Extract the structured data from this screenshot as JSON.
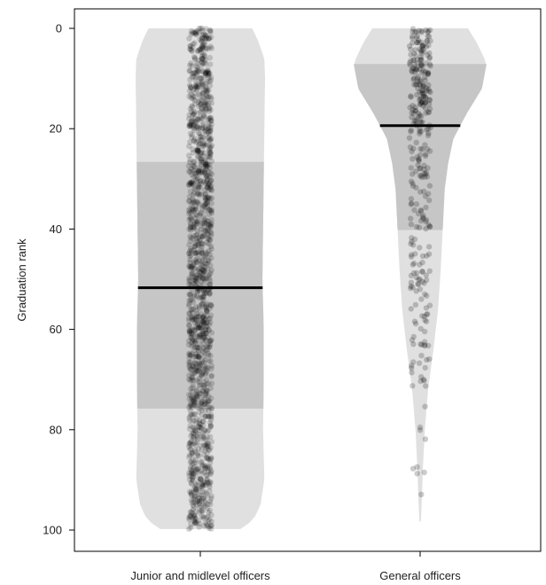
{
  "chart_data": {
    "type": "violin",
    "ylabel": "Graduation rank",
    "y_axis": {
      "min": 0,
      "max": 100,
      "reversed": true,
      "ticks": [
        0,
        20,
        40,
        60,
        80,
        100
      ]
    },
    "categories": [
      "Junior and midlevel officers",
      "General officers"
    ],
    "groups": [
      {
        "name": "Junior and midlevel officers",
        "median": 51.7,
        "q1": 26.6,
        "q3": 75.8,
        "min": 0,
        "max": 99.8,
        "point_count": 1400,
        "density_profile": [
          {
            "rank": 0,
            "relative_width": 0.8
          },
          {
            "rank": 2,
            "relative_width": 0.88
          },
          {
            "rank": 6,
            "relative_width": 0.99
          },
          {
            "rank": 10,
            "relative_width": 1.0
          },
          {
            "rank": 20,
            "relative_width": 0.99
          },
          {
            "rank": 30,
            "relative_width": 0.98
          },
          {
            "rank": 40,
            "relative_width": 0.97
          },
          {
            "rank": 50,
            "relative_width": 0.96
          },
          {
            "rank": 55,
            "relative_width": 0.97
          },
          {
            "rank": 60,
            "relative_width": 0.98
          },
          {
            "rank": 70,
            "relative_width": 0.98
          },
          {
            "rank": 80,
            "relative_width": 0.97
          },
          {
            "rank": 90,
            "relative_width": 0.99
          },
          {
            "rank": 95,
            "relative_width": 0.93
          },
          {
            "rank": 98,
            "relative_width": 0.82
          },
          {
            "rank": 99.8,
            "relative_width": 0.62
          }
        ]
      },
      {
        "name": "General officers",
        "median": 19.4,
        "q1": 7.1,
        "q3": 40.2,
        "min": 0,
        "max": 98.3,
        "point_count": 330,
        "density_profile": [
          {
            "rank": 0,
            "relative_width": 0.72
          },
          {
            "rank": 3,
            "relative_width": 0.86
          },
          {
            "rank": 7,
            "relative_width": 1.0
          },
          {
            "rank": 12,
            "relative_width": 0.93
          },
          {
            "rank": 17,
            "relative_width": 0.7
          },
          {
            "rank": 22,
            "relative_width": 0.5
          },
          {
            "rank": 27,
            "relative_width": 0.42
          },
          {
            "rank": 32,
            "relative_width": 0.37
          },
          {
            "rank": 40,
            "relative_width": 0.34
          },
          {
            "rank": 48,
            "relative_width": 0.31
          },
          {
            "rank": 56,
            "relative_width": 0.27
          },
          {
            "rank": 64,
            "relative_width": 0.2
          },
          {
            "rank": 72,
            "relative_width": 0.12
          },
          {
            "rank": 80,
            "relative_width": 0.07
          },
          {
            "rank": 88,
            "relative_width": 0.04
          },
          {
            "rank": 94,
            "relative_width": 0.025
          },
          {
            "rank": 98.3,
            "relative_width": 0.01
          }
        ]
      }
    ],
    "colors": {
      "violin_outer": "#e0e0e0",
      "violin_iqr": "#c6c6c6",
      "points": "#000000",
      "median_line": "#000000",
      "axis": "#000000"
    }
  }
}
